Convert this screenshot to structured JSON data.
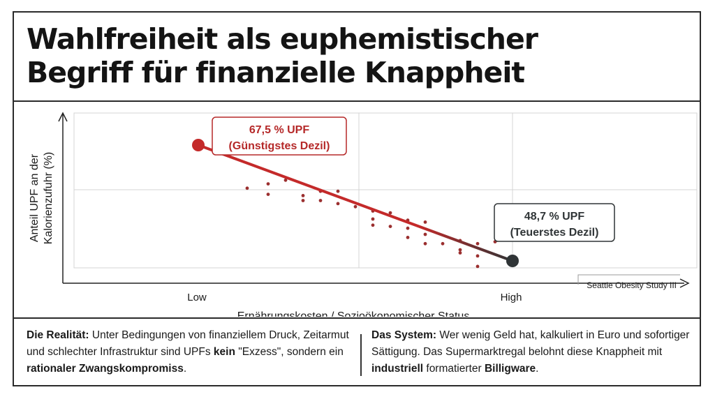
{
  "title": {
    "line1": "Wahlfreiheit als euphemistischer",
    "line2": "Begriff für finanzielle Knappheit"
  },
  "chart_data": {
    "type": "scatter",
    "xlabel": "Ernährungskosten / Sozioökonomischer Status",
    "ylabel_line1": "Anteil UPF an der",
    "ylabel_line2": "Kalorienzufuhr (%)",
    "x_tick_labels": [
      "Low",
      "High"
    ],
    "x_range": [
      0,
      10
    ],
    "y_range": [
      40,
      75
    ],
    "source_note": "Seattle Obesity Study III",
    "trend_line": {
      "start": {
        "x": 1,
        "y": 67.5
      },
      "end": {
        "x": 10,
        "y": 48.7
      },
      "start_color": "#c42a2a",
      "end_color": "#2f3436"
    },
    "annotations": [
      {
        "value_label": "67,5 % UPF",
        "desc_label": "(Günstigstes Dezil)",
        "color": "#b52828"
      },
      {
        "value_label": "48,7 % UPF",
        "desc_label": "(Teuerstes Dezil)",
        "color": "#2f3436"
      }
    ],
    "points": [
      {
        "x": 2.4,
        "y": 60.5
      },
      {
        "x": 3.0,
        "y": 61.2
      },
      {
        "x": 3.5,
        "y": 61.8
      },
      {
        "x": 3.0,
        "y": 59.5
      },
      {
        "x": 4.5,
        "y": 60.0
      },
      {
        "x": 4.0,
        "y": 59.3
      },
      {
        "x": 4.0,
        "y": 58.5
      },
      {
        "x": 4.5,
        "y": 58.5
      },
      {
        "x": 5.0,
        "y": 60.0
      },
      {
        "x": 5.0,
        "y": 58.0
      },
      {
        "x": 5.5,
        "y": 57.5
      },
      {
        "x": 6.0,
        "y": 56.8
      },
      {
        "x": 6.5,
        "y": 56.5
      },
      {
        "x": 6.0,
        "y": 55.5
      },
      {
        "x": 6.5,
        "y": 54.3
      },
      {
        "x": 6.0,
        "y": 54.5
      },
      {
        "x": 7.0,
        "y": 55.3
      },
      {
        "x": 7.0,
        "y": 54.0
      },
      {
        "x": 7.5,
        "y": 55.0
      },
      {
        "x": 7.0,
        "y": 52.5
      },
      {
        "x": 7.5,
        "y": 53.0
      },
      {
        "x": 8.0,
        "y": 51.5
      },
      {
        "x": 8.5,
        "y": 52.0
      },
      {
        "x": 7.5,
        "y": 51.5
      },
      {
        "x": 9.0,
        "y": 51.5
      },
      {
        "x": 8.5,
        "y": 50.0
      },
      {
        "x": 9.5,
        "y": 51.8
      },
      {
        "x": 9.0,
        "y": 49.5
      },
      {
        "x": 8.5,
        "y": 50.5
      },
      {
        "x": 9.0,
        "y": 47.8
      }
    ],
    "point_color": "#9b2f2f"
  },
  "footer": {
    "left": {
      "lead": "Die Realität:",
      "t1": " Unter Bedingungen von finanziellem Druck, Zeitarmut und schlechter Infrastruktur sind UPFs ",
      "b1": "kein",
      "t2": " \"Exzess\", sondern ein ",
      "b2": "rationaler Zwangskompromiss",
      "t3": "."
    },
    "right": {
      "lead": "Das System:",
      "t1": " Wer wenig Geld hat, kalkuliert in Euro und sofortiger Sättigung. Das Supermarktregal belohnt diese Knappheit mit ",
      "b1": "industriell",
      "t2": " formatierter ",
      "b2": "Billigware",
      "t3": "."
    }
  }
}
